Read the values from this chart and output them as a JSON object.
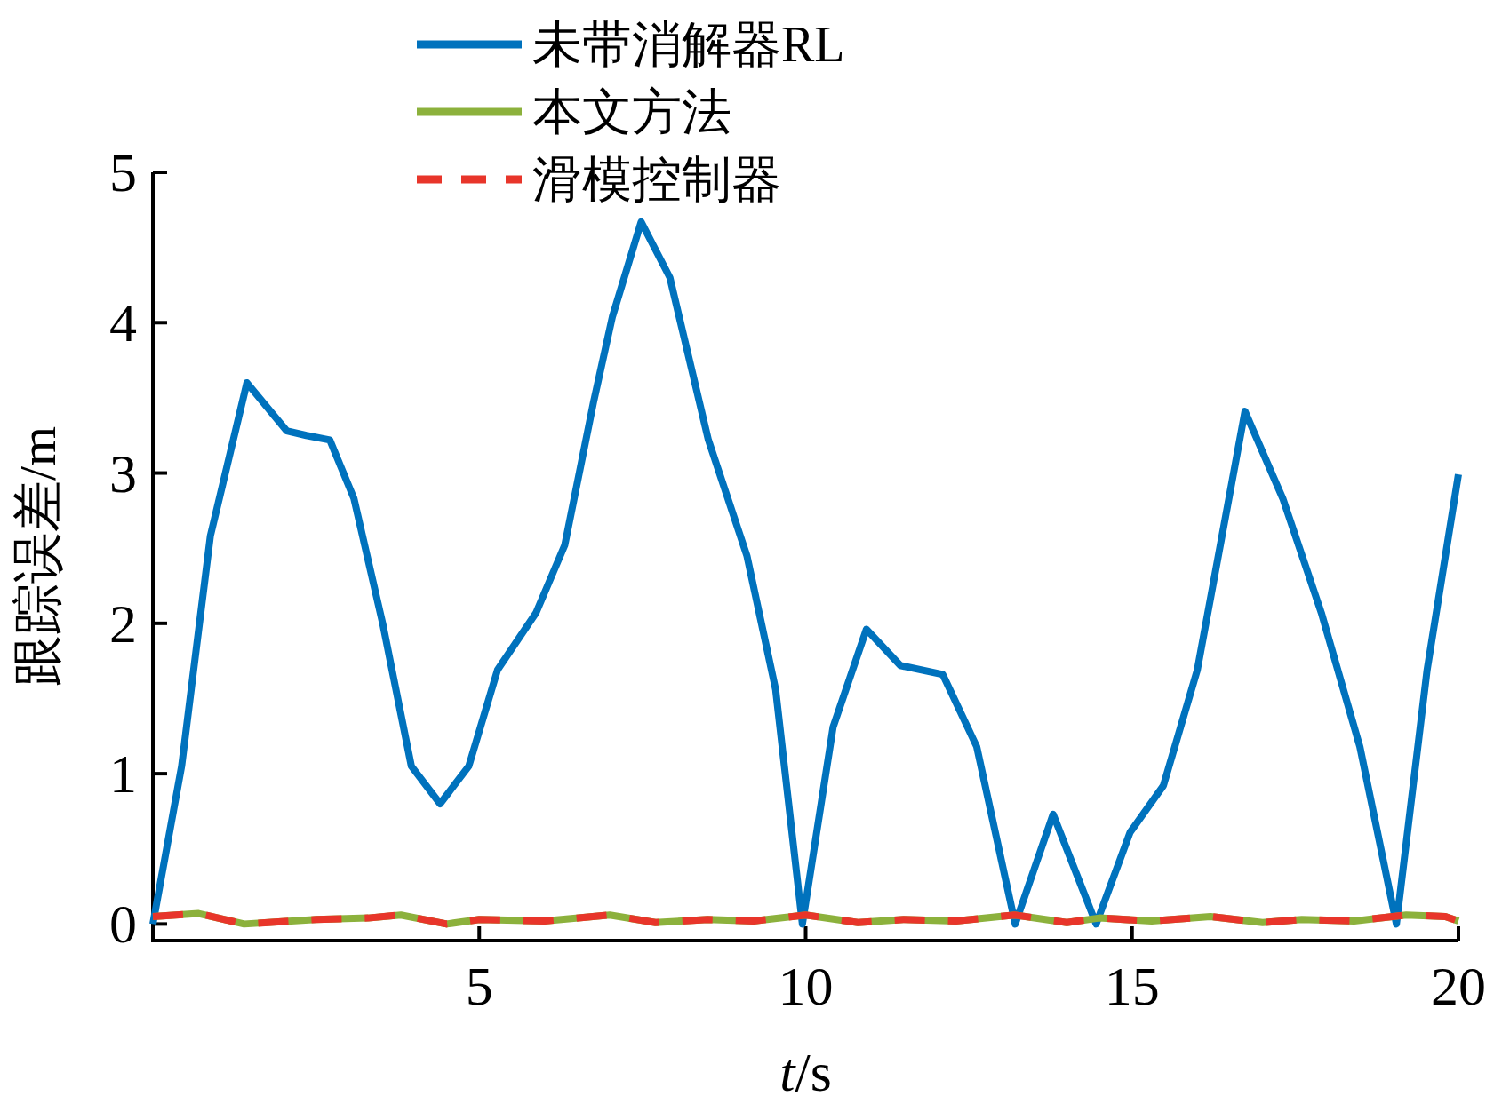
{
  "chart_data": {
    "type": "line",
    "xlabel": "*t*/s",
    "ylabel": "跟踪误差/m",
    "xlim": [
      0,
      20
    ],
    "ylim": [
      -0.11,
      5
    ],
    "xticks": [
      5,
      10,
      15,
      20
    ],
    "yticks": [
      0,
      1,
      2,
      3,
      4,
      5
    ],
    "legend": "top",
    "grid": false,
    "marker": "none",
    "series": [
      {
        "name": "未带消解器RL",
        "color": "#0072bd",
        "line_style": "solid",
        "x": [
          0,
          0.44,
          0.88,
          1.44,
          2.05,
          2.35,
          2.71,
          3.08,
          3.52,
          3.96,
          4.4,
          4.84,
          5.28,
          5.87,
          6.31,
          6.75,
          7.04,
          7.48,
          7.92,
          8.51,
          9.1,
          9.54,
          9.95,
          10.42,
          10.93,
          11.45,
          12.1,
          12.62,
          13.21,
          13.79,
          14.45,
          14.97,
          15.48,
          16.0,
          16.73,
          17.31,
          17.9,
          18.49,
          19.05,
          19.52,
          20
        ],
        "values": [
          0,
          1.05,
          2.58,
          3.6,
          3.28,
          3.25,
          3.22,
          2.83,
          2.0,
          1.05,
          0.8,
          1.05,
          1.69,
          2.07,
          2.52,
          3.47,
          4.04,
          4.67,
          4.3,
          3.22,
          2.45,
          1.56,
          0,
          1.31,
          1.96,
          1.72,
          1.66,
          1.18,
          0,
          0.73,
          0,
          0.61,
          0.92,
          1.69,
          3.41,
          2.83,
          2.07,
          1.18,
          0,
          1.69,
          2.99
        ]
      },
      {
        "name": "本文方法",
        "color": "#8cb13c",
        "line_style": "solid",
        "x": [
          0,
          0.7,
          1.4,
          2.5,
          3.3,
          3.8,
          4.5,
          5,
          6,
          7,
          7.7,
          8.5,
          9.2,
          10,
          10.8,
          11.5,
          12.3,
          13.2,
          14,
          14.5,
          15.3,
          16.2,
          17,
          17.6,
          18.4,
          19.2,
          19.8,
          20
        ],
        "values": [
          0.05,
          0.07,
          0.0,
          0.03,
          0.04,
          0.06,
          0.0,
          0.03,
          0.02,
          0.06,
          0.01,
          0.03,
          0.02,
          0.06,
          0.01,
          0.03,
          0.02,
          0.06,
          0.01,
          0.04,
          0.02,
          0.05,
          0.01,
          0.03,
          0.02,
          0.06,
          0.05,
          0.02
        ]
      },
      {
        "name": "滑模控制器",
        "color": "#e8352a",
        "line_style": "dashed",
        "x": [
          0,
          0.7,
          1.4,
          2.5,
          3.3,
          3.8,
          4.5,
          5,
          6,
          7,
          7.7,
          8.5,
          9.2,
          10,
          10.8,
          11.5,
          12.3,
          13.2,
          14,
          14.5,
          15.3,
          16.2,
          17,
          17.6,
          18.4,
          19.2,
          19.8,
          20
        ],
        "values": [
          0.05,
          0.07,
          0.0,
          0.03,
          0.04,
          0.06,
          0.0,
          0.03,
          0.02,
          0.06,
          0.01,
          0.03,
          0.02,
          0.06,
          0.01,
          0.03,
          0.02,
          0.06,
          0.01,
          0.04,
          0.02,
          0.05,
          0.01,
          0.03,
          0.02,
          0.06,
          0.05,
          0.02
        ]
      }
    ]
  }
}
